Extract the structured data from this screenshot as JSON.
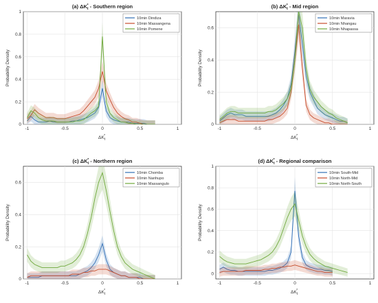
{
  "chart_data": [
    {
      "type": "line",
      "title_text": "(a) ΔK",
      "title_rest": " - Southern region",
      "xlabel": "ΔK",
      "ylabel": "Probability Density",
      "xlim": [
        -1.05,
        1.05
      ],
      "ylim": [
        0,
        1
      ],
      "xticks": [
        "-1",
        "-0.5",
        "0",
        "0.5",
        "1"
      ],
      "yticks": [
        "0",
        "0.2",
        "0.4",
        "0.6",
        "0.8",
        "1"
      ],
      "grid": true,
      "legend_position": "top-right",
      "x": [
        -1.0,
        -0.95,
        -0.9,
        -0.85,
        -0.8,
        -0.75,
        -0.7,
        -0.65,
        -0.6,
        -0.55,
        -0.5,
        -0.45,
        -0.4,
        -0.35,
        -0.3,
        -0.25,
        -0.2,
        -0.15,
        -0.1,
        -0.05,
        0.0,
        0.05,
        0.1,
        0.15,
        0.2,
        0.25,
        0.3,
        0.35,
        0.4,
        0.45,
        0.5,
        0.55,
        0.6,
        0.65,
        0.7
      ],
      "series": [
        {
          "name": "10min Dindiza",
          "color": "#2f6db5",
          "values": [
            0.03,
            0.07,
            0.04,
            0.02,
            0.02,
            0.02,
            0.03,
            0.02,
            0.02,
            0.02,
            0.02,
            0.02,
            0.03,
            0.03,
            0.04,
            0.05,
            0.06,
            0.08,
            0.1,
            0.15,
            0.32,
            0.12,
            0.06,
            0.04,
            0.03,
            0.02,
            0.02,
            0.02,
            0.01,
            0.01,
            0.01,
            0.01,
            0.0,
            0.0,
            0.0
          ]
        },
        {
          "name": "10min Massangena",
          "color": "#c64b2a",
          "values": [
            0.05,
            0.08,
            0.13,
            0.1,
            0.08,
            0.06,
            0.06,
            0.06,
            0.05,
            0.05,
            0.05,
            0.06,
            0.07,
            0.08,
            0.09,
            0.12,
            0.16,
            0.2,
            0.24,
            0.32,
            0.47,
            0.3,
            0.22,
            0.15,
            0.1,
            0.07,
            0.05,
            0.04,
            0.02,
            0.02,
            0.01,
            0.0,
            0.0,
            0.0,
            0.0
          ]
        },
        {
          "name": "10min Pomene",
          "color": "#6ea83a",
          "values": [
            0.06,
            0.12,
            0.1,
            0.06,
            0.04,
            0.03,
            0.03,
            0.03,
            0.02,
            0.02,
            0.02,
            0.02,
            0.02,
            0.03,
            0.03,
            0.04,
            0.07,
            0.1,
            0.12,
            0.16,
            0.78,
            0.2,
            0.1,
            0.06,
            0.04,
            0.02,
            0.02,
            0.01,
            0.01,
            0.0,
            0.0,
            0.0,
            0.0,
            0.0,
            0.0
          ]
        }
      ]
    },
    {
      "type": "line",
      "title_text": "(b) ΔK",
      "title_rest": " - Mid region",
      "xlabel": "ΔK",
      "ylabel": "Probability Density",
      "xlim": [
        -1.05,
        1.05
      ],
      "ylim": [
        0,
        0.7
      ],
      "xticks": [
        "-1",
        "-0.5",
        "0",
        "0.5",
        "1"
      ],
      "yticks": [
        "0",
        "0.2",
        "0.4",
        "0.6"
      ],
      "grid": true,
      "legend_position": "top-right",
      "x": [
        -1.0,
        -0.95,
        -0.9,
        -0.85,
        -0.8,
        -0.75,
        -0.7,
        -0.65,
        -0.6,
        -0.55,
        -0.5,
        -0.45,
        -0.4,
        -0.35,
        -0.3,
        -0.25,
        -0.2,
        -0.15,
        -0.1,
        -0.05,
        0.0,
        0.05,
        0.1,
        0.15,
        0.2,
        0.25,
        0.3,
        0.35,
        0.4,
        0.45,
        0.5,
        0.55,
        0.6,
        0.65,
        0.7
      ],
      "series": [
        {
          "name": "10min Maravia",
          "color": "#2f6db5",
          "values": [
            0.02,
            0.04,
            0.06,
            0.07,
            0.06,
            0.06,
            0.06,
            0.05,
            0.05,
            0.05,
            0.05,
            0.05,
            0.05,
            0.05,
            0.06,
            0.07,
            0.09,
            0.12,
            0.16,
            0.25,
            0.45,
            0.68,
            0.5,
            0.3,
            0.2,
            0.15,
            0.1,
            0.08,
            0.06,
            0.05,
            0.04,
            0.03,
            0.02,
            0.02,
            0.01
          ]
        },
        {
          "name": "10min Nhangau",
          "color": "#c64b2a",
          "values": [
            0.01,
            0.02,
            0.03,
            0.03,
            0.03,
            0.02,
            0.02,
            0.02,
            0.02,
            0.02,
            0.02,
            0.02,
            0.02,
            0.03,
            0.03,
            0.04,
            0.05,
            0.07,
            0.1,
            0.2,
            0.4,
            0.62,
            0.35,
            0.12,
            0.06,
            0.04,
            0.03,
            0.02,
            0.01,
            0.01,
            0.0,
            0.0,
            0.0,
            0.0,
            0.0
          ]
        },
        {
          "name": "10min Nhapassa",
          "color": "#6ea83a",
          "values": [
            0.03,
            0.05,
            0.07,
            0.08,
            0.08,
            0.07,
            0.07,
            0.07,
            0.07,
            0.07,
            0.07,
            0.07,
            0.07,
            0.08,
            0.08,
            0.09,
            0.11,
            0.13,
            0.16,
            0.22,
            0.4,
            0.7,
            0.6,
            0.35,
            0.22,
            0.17,
            0.14,
            0.11,
            0.09,
            0.07,
            0.06,
            0.04,
            0.03,
            0.02,
            0.01
          ]
        }
      ]
    },
    {
      "type": "line",
      "title_text": "(c) ΔK",
      "title_rest": " - Northern region",
      "xlabel": "ΔK",
      "ylabel": "Probability Density",
      "xlim": [
        -1.05,
        1.05
      ],
      "ylim": [
        0,
        0.7
      ],
      "xticks": [
        "-1",
        "-0.5",
        "0",
        "0.5",
        "1"
      ],
      "yticks": [
        "0",
        "0.2",
        "0.4",
        "0.6"
      ],
      "grid": true,
      "legend_position": "top-right",
      "x": [
        -1.0,
        -0.95,
        -0.9,
        -0.85,
        -0.8,
        -0.75,
        -0.7,
        -0.65,
        -0.6,
        -0.55,
        -0.5,
        -0.45,
        -0.4,
        -0.35,
        -0.3,
        -0.25,
        -0.2,
        -0.15,
        -0.1,
        -0.05,
        0.0,
        0.05,
        0.1,
        0.15,
        0.2,
        0.25,
        0.3,
        0.35,
        0.4,
        0.45,
        0.5,
        0.55,
        0.6,
        0.65,
        0.7
      ],
      "series": [
        {
          "name": "10min Chomba",
          "color": "#2f6db5",
          "values": [
            0.01,
            0.01,
            0.01,
            0.01,
            0.02,
            0.02,
            0.02,
            0.02,
            0.02,
            0.02,
            0.02,
            0.02,
            0.02,
            0.02,
            0.03,
            0.04,
            0.05,
            0.07,
            0.1,
            0.15,
            0.22,
            0.12,
            0.06,
            0.04,
            0.03,
            0.02,
            0.02,
            0.01,
            0.01,
            0.01,
            0.01,
            0.0,
            0.0,
            0.0,
            0.0
          ]
        },
        {
          "name": "10min Nanhupo",
          "color": "#c64b2a",
          "values": [
            0.01,
            0.02,
            0.02,
            0.02,
            0.02,
            0.02,
            0.02,
            0.02,
            0.02,
            0.02,
            0.02,
            0.02,
            0.03,
            0.03,
            0.03,
            0.04,
            0.04,
            0.05,
            0.05,
            0.06,
            0.06,
            0.06,
            0.05,
            0.04,
            0.03,
            0.02,
            0.02,
            0.01,
            0.01,
            0.01,
            0.0,
            0.0,
            0.0,
            0.0,
            0.0
          ]
        },
        {
          "name": "10min Massangulo",
          "color": "#6ea83a",
          "values": [
            0.15,
            0.11,
            0.09,
            0.08,
            0.07,
            0.07,
            0.07,
            0.07,
            0.07,
            0.08,
            0.08,
            0.09,
            0.1,
            0.12,
            0.15,
            0.2,
            0.28,
            0.38,
            0.5,
            0.6,
            0.66,
            0.55,
            0.42,
            0.3,
            0.2,
            0.14,
            0.1,
            0.08,
            0.06,
            0.05,
            0.04,
            0.03,
            0.02,
            0.01,
            0.0
          ]
        }
      ]
    },
    {
      "type": "line",
      "title_text": "(d) ΔK",
      "title_rest": " - Regional comparison",
      "xlabel": "ΔK",
      "ylabel": "Probability Density",
      "xlim": [
        -1.05,
        1.05
      ],
      "ylim": [
        -0.05,
        1.0
      ],
      "xticks": [
        "-1",
        "-0.5",
        "0",
        "0.5",
        "1"
      ],
      "yticks": [
        "0",
        "0.2",
        "0.4",
        "0.6",
        "0.8",
        "1"
      ],
      "grid": true,
      "legend_position": "top-right",
      "x": [
        -1.0,
        -0.95,
        -0.9,
        -0.85,
        -0.8,
        -0.75,
        -0.7,
        -0.65,
        -0.6,
        -0.55,
        -0.5,
        -0.45,
        -0.4,
        -0.35,
        -0.3,
        -0.25,
        -0.2,
        -0.15,
        -0.1,
        -0.05,
        0.0,
        0.05,
        0.1,
        0.15,
        0.2,
        0.25,
        0.3,
        0.35,
        0.4,
        0.45,
        0.5,
        0.55,
        0.6,
        0.65,
        0.7
      ],
      "series": [
        {
          "name": "10min South-Mid",
          "color": "#2f6db5",
          "values": [
            0.04,
            0.06,
            0.04,
            0.03,
            0.03,
            0.02,
            0.02,
            0.02,
            0.02,
            0.02,
            0.02,
            0.02,
            0.02,
            0.03,
            0.03,
            0.04,
            0.05,
            0.07,
            0.1,
            0.2,
            0.77,
            0.35,
            0.15,
            0.08,
            0.06,
            0.05,
            0.04,
            0.04,
            0.03,
            0.03,
            0.02,
            null,
            null,
            null,
            null
          ]
        },
        {
          "name": "10min North-Mid",
          "color": "#c64b2a",
          "values": [
            0.01,
            0.02,
            0.02,
            0.02,
            0.02,
            0.02,
            0.02,
            0.03,
            0.03,
            0.03,
            0.03,
            0.03,
            0.04,
            0.04,
            0.05,
            0.05,
            0.06,
            0.06,
            0.07,
            0.07,
            0.08,
            0.07,
            0.06,
            0.05,
            0.04,
            0.03,
            0.02,
            0.02,
            0.01,
            0.01,
            0.01,
            null,
            null,
            null,
            null
          ]
        },
        {
          "name": "10min North-South",
          "color": "#6ea83a",
          "values": [
            0.16,
            0.13,
            0.11,
            0.1,
            0.09,
            0.09,
            0.09,
            0.09,
            0.1,
            0.11,
            0.12,
            0.13,
            0.15,
            0.17,
            0.2,
            0.25,
            0.32,
            0.42,
            0.52,
            0.6,
            0.65,
            0.5,
            0.35,
            0.25,
            0.18,
            0.14,
            0.11,
            0.09,
            0.07,
            0.06,
            0.05,
            0.04,
            0.03,
            0.02,
            0.01
          ]
        }
      ]
    }
  ]
}
